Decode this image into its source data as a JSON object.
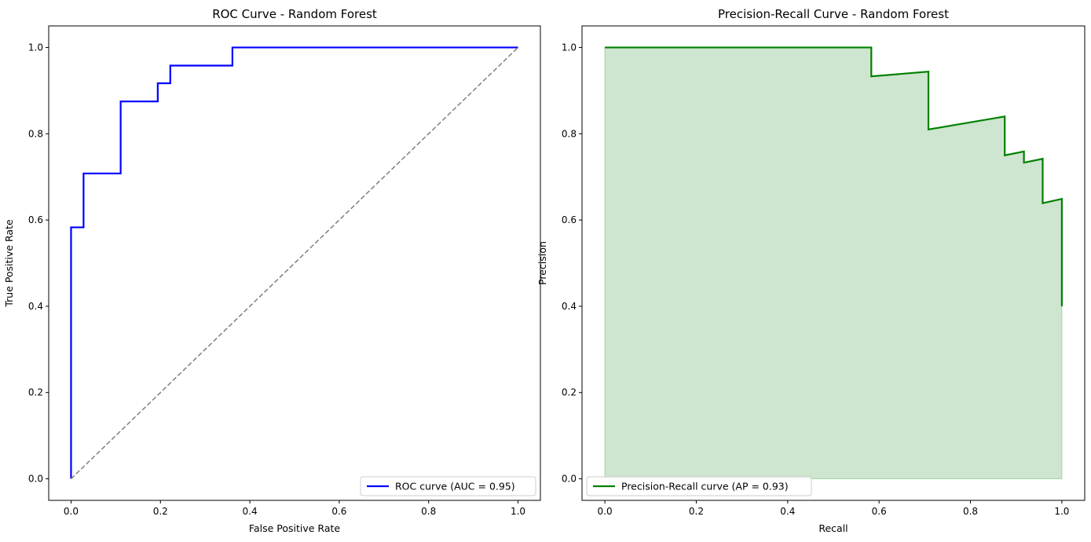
{
  "chart_data": [
    {
      "type": "line",
      "title": "ROC Curve - Random Forest",
      "xlabel": "False Positive Rate",
      "ylabel": "True Positive Rate",
      "xlim": [
        -0.05,
        1.05
      ],
      "ylim": [
        -0.05,
        1.05
      ],
      "xticks": [
        "0.0",
        "0.2",
        "0.4",
        "0.6",
        "0.8",
        "1.0"
      ],
      "yticks": [
        "0.0",
        "0.2",
        "0.4",
        "0.6",
        "0.8",
        "1.0"
      ],
      "grid": false,
      "legend_position": "lower-right",
      "series": [
        {
          "name": "ROC curve (AUC = 0.95)",
          "color": "#0000ff",
          "style": "solid",
          "x": [
            0.0,
            0.0,
            0.028,
            0.028,
            0.111,
            0.111,
            0.194,
            0.194,
            0.222,
            0.222,
            0.361,
            0.361,
            1.0
          ],
          "y": [
            0.0,
            0.583,
            0.583,
            0.708,
            0.708,
            0.875,
            0.875,
            0.917,
            0.917,
            0.958,
            0.958,
            1.0,
            1.0
          ]
        },
        {
          "color": "#808080",
          "style": "dashed",
          "x": [
            0.0,
            1.0
          ],
          "y": [
            0.0,
            1.0
          ]
        }
      ]
    },
    {
      "type": "area",
      "title": "Precision-Recall Curve - Random Forest",
      "xlabel": "Recall",
      "ylabel": "Precision",
      "xlim": [
        -0.05,
        1.05
      ],
      "ylim": [
        -0.05,
        1.05
      ],
      "xticks": [
        "0.0",
        "0.2",
        "0.4",
        "0.6",
        "0.8",
        "1.0"
      ],
      "yticks": [
        "0.0",
        "0.2",
        "0.4",
        "0.6",
        "0.8",
        "1.0"
      ],
      "grid": false,
      "legend_position": "lower-left",
      "series": [
        {
          "name": "Precision-Recall curve (AP = 0.93)",
          "color": "#008000",
          "fill_color": "#cee5cf",
          "style": "solid",
          "x": [
            0.0,
            0.583,
            0.583,
            0.708,
            0.708,
            0.875,
            0.875,
            0.917,
            0.917,
            0.958,
            0.958,
            1.0,
            1.0
          ],
          "y": [
            1.0,
            1.0,
            0.933,
            0.944,
            0.81,
            0.84,
            0.75,
            0.759,
            0.733,
            0.742,
            0.639,
            0.649,
            0.4
          ]
        }
      ]
    }
  ]
}
